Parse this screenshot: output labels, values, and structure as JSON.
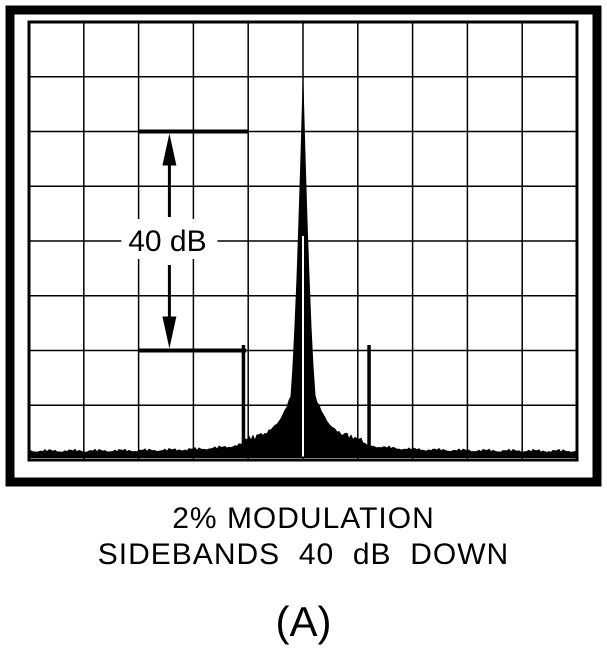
{
  "annotation": {
    "level_difference": "40 dB"
  },
  "caption": {
    "line1": "2% MODULATION",
    "line2": "SIDEBANDS  40  dB  DOWN"
  },
  "panel_label": "(A)",
  "display": {
    "grid_columns": 10,
    "grid_rows": 8,
    "carrier_peak_division": 6.1,
    "sideband_peak_division": 2.1,
    "reference_line_upper_division": 6,
    "reference_line_lower_division": 2,
    "noise_floor_division": 0.1
  },
  "colors": {
    "ink": "#000000",
    "paper": "#ffffff"
  }
}
